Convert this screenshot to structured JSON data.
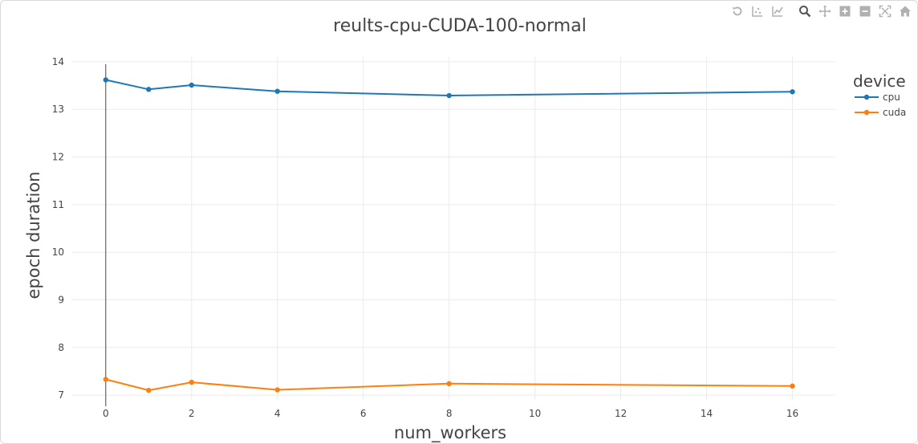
{
  "chart_data": {
    "type": "line",
    "title": "reults-cpu-CUDA-100-normal",
    "xlabel": "num_workers",
    "ylabel": "epoch duration",
    "xlim": [
      -0.8,
      17
    ],
    "ylim": [
      6.9,
      14.1
    ],
    "x_ticks": [
      0,
      2,
      4,
      6,
      8,
      10,
      12,
      14,
      16
    ],
    "y_ticks": [
      7,
      8,
      9,
      10,
      11,
      12,
      13,
      14
    ],
    "grid": true,
    "legend": {
      "title": "device",
      "position": "top-right"
    },
    "x": [
      0,
      1,
      2,
      4,
      8,
      16
    ],
    "series": [
      {
        "name": "cpu",
        "color": "#1f77b4",
        "values": [
          13.62,
          13.42,
          13.51,
          13.38,
          13.29,
          13.37
        ]
      },
      {
        "name": "cuda",
        "color": "#ff7f0e",
        "values": [
          7.33,
          7.1,
          7.27,
          7.11,
          7.24,
          7.19
        ]
      }
    ]
  },
  "modebar": {
    "buttons": [
      {
        "name": "reset-axes-icon"
      },
      {
        "name": "compare-data-icon"
      },
      {
        "name": "spike-lines-icon"
      },
      {
        "name": "zoom-icon"
      },
      {
        "name": "pan-icon"
      },
      {
        "name": "zoom-in-icon"
      },
      {
        "name": "zoom-out-icon"
      },
      {
        "name": "autoscale-icon"
      },
      {
        "name": "home-icon"
      }
    ],
    "color": "#b0b0b0"
  }
}
